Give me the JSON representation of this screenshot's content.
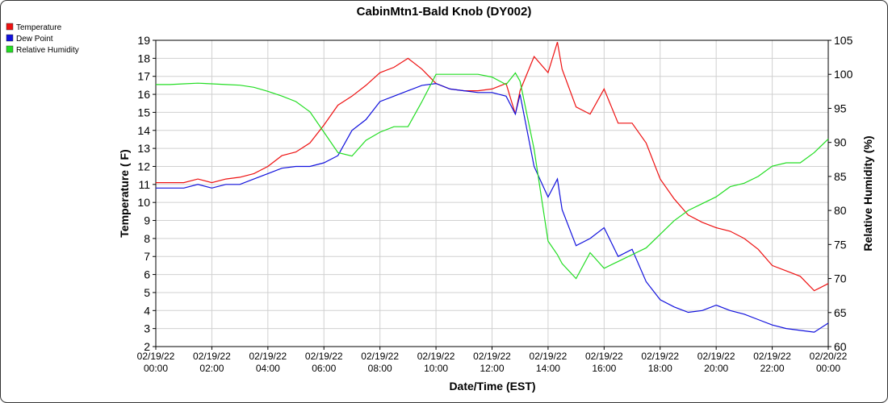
{
  "chart_data": {
    "type": "line",
    "title": "CabinMtn1-Bald Knob (DY002)",
    "xlabel": "Date/Time (EST)",
    "ylabel": "Temperature ( F)",
    "y2label": "Relative Humidity (%)",
    "x": [
      "02/19/22 00:00",
      "02/19/22 00:30",
      "02/19/22 01:00",
      "02/19/22 01:30",
      "02/19/22 02:00",
      "02/19/22 02:30",
      "02/19/22 03:00",
      "02/19/22 03:30",
      "02/19/22 04:00",
      "02/19/22 04:30",
      "02/19/22 05:00",
      "02/19/22 05:30",
      "02/19/22 06:00",
      "02/19/22 06:30",
      "02/19/22 07:00",
      "02/19/22 07:30",
      "02/19/22 08:00",
      "02/19/22 08:30",
      "02/19/22 09:00",
      "02/19/22 09:30",
      "02/19/22 10:00",
      "02/19/22 10:30",
      "02/19/22 11:00",
      "02/19/22 11:30",
      "02/19/22 12:00",
      "02/19/22 12:30",
      "02/19/22 12:50",
      "02/19/22 13:00",
      "02/19/22 13:30",
      "02/19/22 14:00",
      "02/19/22 14:20",
      "02/19/22 14:30",
      "02/19/22 15:00",
      "02/19/22 15:30",
      "02/19/22 16:00",
      "02/19/22 16:30",
      "02/19/22 17:00",
      "02/19/22 17:30",
      "02/19/22 18:00",
      "02/19/22 18:30",
      "02/19/22 19:00",
      "02/19/22 19:30",
      "02/19/22 20:00",
      "02/19/22 20:30",
      "02/19/22 21:00",
      "02/19/22 21:30",
      "02/19/22 22:00",
      "02/19/22 22:30",
      "02/19/22 23:00",
      "02/19/22 23:30",
      "02/20/22 00:00"
    ],
    "series": [
      {
        "name": "Temperature",
        "color": "#ee1111",
        "values": [
          11.1,
          11.1,
          11.1,
          11.3,
          11.1,
          11.3,
          11.4,
          11.6,
          12.0,
          12.6,
          12.8,
          13.3,
          14.3,
          15.4,
          15.9,
          16.5,
          17.2,
          17.5,
          18.0,
          17.4,
          16.6,
          16.3,
          16.2,
          16.2,
          16.3,
          16.6,
          14.9,
          16.2,
          18.1,
          17.2,
          18.9,
          17.4,
          15.3,
          14.9,
          16.3,
          14.4,
          14.4,
          13.3,
          11.3,
          10.2,
          9.3,
          8.9,
          8.6,
          8.4,
          8.0,
          7.4,
          6.5,
          6.2,
          5.9,
          5.1,
          5.5
        ]
      },
      {
        "name": "Dew Point",
        "color": "#1111dd",
        "values": [
          10.8,
          10.8,
          10.8,
          11.0,
          10.8,
          11.0,
          11.0,
          11.3,
          11.6,
          11.9,
          12.0,
          12.0,
          12.2,
          12.6,
          14.0,
          14.6,
          15.6,
          15.9,
          16.2,
          16.5,
          16.6,
          16.3,
          16.2,
          16.1,
          16.1,
          15.9,
          14.9,
          16.0,
          12.0,
          10.3,
          11.3,
          9.6,
          7.6,
          8.0,
          8.6,
          7.0,
          7.4,
          5.6,
          4.6,
          4.2,
          3.9,
          4.0,
          4.3,
          4.0,
          3.8,
          3.5,
          3.2,
          3.0,
          2.9,
          2.8,
          3.3
        ]
      },
      {
        "name": "Relative Humidity",
        "color": "#22dd22",
        "axis": "y2",
        "values": [
          98.5,
          98.5,
          98.6,
          98.7,
          98.6,
          98.5,
          98.4,
          98.1,
          97.5,
          96.8,
          96.0,
          94.5,
          91.5,
          88.5,
          88.0,
          90.3,
          91.5,
          92.3,
          92.3,
          96.0,
          100.0,
          100.0,
          100.0,
          100.0,
          99.6,
          98.5,
          100.2,
          99.0,
          89.0,
          75.5,
          73.5,
          72.2,
          70.0,
          73.8,
          71.5,
          72.5,
          73.5,
          74.5,
          76.5,
          78.5,
          80.0,
          81.0,
          82.0,
          83.5,
          84.0,
          85.0,
          86.5,
          87.0,
          87.0,
          88.5,
          90.5
        ]
      }
    ],
    "xlim": [
      "02/19/22 00:00",
      "02/20/22 00:00"
    ],
    "xticks": [
      "02/19/22 00:00",
      "02/19/22 02:00",
      "02/19/22 04:00",
      "02/19/22 06:00",
      "02/19/22 08:00",
      "02/19/22 10:00",
      "02/19/22 12:00",
      "02/19/22 14:00",
      "02/19/22 16:00",
      "02/19/22 18:00",
      "02/19/22 20:00",
      "02/19/22 22:00",
      "02/20/22 00:00"
    ],
    "ylim": [
      2,
      19
    ],
    "yticks": [
      2,
      3,
      4,
      5,
      6,
      7,
      8,
      9,
      10,
      11,
      12,
      13,
      14,
      15,
      16,
      17,
      18,
      19
    ],
    "y2lim": [
      60,
      105
    ],
    "y2ticks": [
      60,
      65,
      70,
      75,
      80,
      85,
      90,
      95,
      100,
      105
    ],
    "grid": true,
    "legend": "top-left"
  }
}
